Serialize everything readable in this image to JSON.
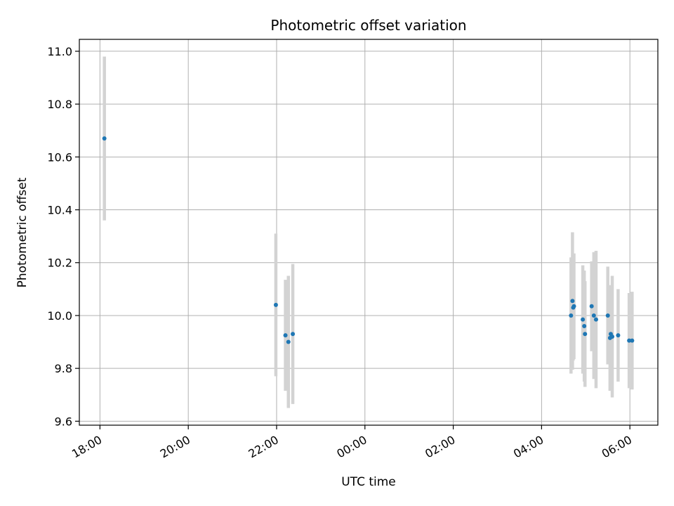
{
  "chart_data": {
    "type": "scatter",
    "title": "Photometric offset variation",
    "xlabel": "UTC time",
    "ylabel": "Photometric offset",
    "x_axis": {
      "type": "time",
      "start": "18:00",
      "min_hours": 17.533,
      "max_hours": 30.633,
      "tick_hours": [
        18,
        20,
        22,
        24,
        26,
        28,
        30
      ],
      "tick_labels": [
        "18:00",
        "20:00",
        "22:00",
        "00:00",
        "02:00",
        "04:00",
        "06:00"
      ],
      "tick_label_rotation": -30
    },
    "ylim": [
      9.585,
      11.045
    ],
    "y_ticks": [
      9.6,
      9.8,
      10.0,
      10.2,
      10.4,
      10.6,
      10.8,
      11.0
    ],
    "y_tick_labels": [
      "9.6",
      "9.8",
      "10.0",
      "10.2",
      "10.4",
      "10.6",
      "10.8",
      "11.0"
    ],
    "grid": true,
    "colors": {
      "marker": "#1f77b4",
      "errorbar": "#d3d3d3",
      "grid": "#b0b0b0",
      "axis": "#000000"
    },
    "series": [
      {
        "points": [
          {
            "t": "18:06",
            "y": 10.67,
            "yerr": 0.31
          },
          {
            "t": "21:59",
            "y": 10.04,
            "yerr": 0.27
          },
          {
            "t": "22:12",
            "y": 9.925,
            "yerr": 0.21
          },
          {
            "t": "22:16",
            "y": 9.9,
            "yerr": 0.25
          },
          {
            "t": "22:22",
            "y": 9.93,
            "yerr": 0.265
          },
          {
            "t": "04:40",
            "y": 10.0,
            "yerr": 0.22
          },
          {
            "t": "04:42",
            "y": 10.055,
            "yerr": 0.26
          },
          {
            "t": "04:43",
            "y": 10.03,
            "yerr": 0.2
          },
          {
            "t": "04:44",
            "y": 10.035,
            "yerr": 0.2
          },
          {
            "t": "04:56",
            "y": 9.985,
            "yerr": 0.205
          },
          {
            "t": "04:58",
            "y": 9.96,
            "yerr": 0.21
          },
          {
            "t": "04:59",
            "y": 9.93,
            "yerr": 0.2
          },
          {
            "t": "05:08",
            "y": 10.035,
            "yerr": 0.17
          },
          {
            "t": "05:11",
            "y": 10.0,
            "yerr": 0.24
          },
          {
            "t": "05:14",
            "y": 9.985,
            "yerr": 0.26
          },
          {
            "t": "05:30",
            "y": 10.0,
            "yerr": 0.185
          },
          {
            "t": "05:33",
            "y": 9.915,
            "yerr": 0.2
          },
          {
            "t": "05:34",
            "y": 9.93,
            "yerr": 0.18
          },
          {
            "t": "05:36",
            "y": 9.92,
            "yerr": 0.23
          },
          {
            "t": "05:44",
            "y": 9.925,
            "yerr": 0.175
          },
          {
            "t": "05:59",
            "y": 9.905,
            "yerr": 0.18
          },
          {
            "t": "06:03",
            "y": 9.905,
            "yerr": 0.185
          }
        ]
      }
    ]
  }
}
